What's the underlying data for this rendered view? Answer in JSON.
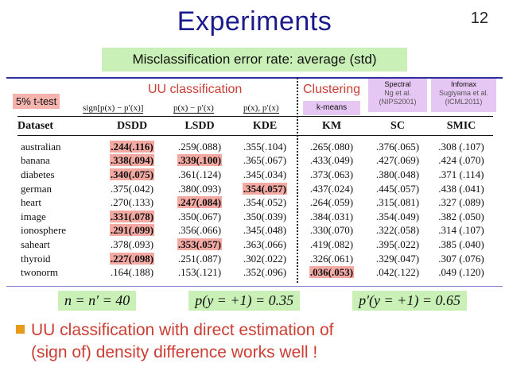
{
  "title": "Experiments",
  "page_number": "12",
  "subtitle": "Misclassification error rate: average (std)",
  "ttest_label": "5% t-test",
  "uu_header": "UU classification",
  "clustering_header": "Clustering",
  "kmeans_label": "k-means",
  "spectral": {
    "title": "Spectral",
    "line1": "Ng et al.",
    "line2": "(NIPS2001)"
  },
  "infomax": {
    "title": "Infomax",
    "line1": "Sugiyama et al.",
    "line2": "(ICML2011)"
  },
  "formulas": {
    "dsdd": "sign[p(x) − p′(x)]",
    "lsdd": "p(x) − p′(x)",
    "kde": "p(x), p′(x)"
  },
  "table": {
    "headers": [
      "Dataset",
      "DSDD",
      "LSDD",
      "KDE",
      "KM",
      "SC",
      "SMIC"
    ],
    "rows": [
      {
        "name": "australian",
        "values": [
          ".244(.116)",
          ".259(.088)",
          ".355(.104)",
          ".265(.080)",
          ".376(.065)",
          ".308 (.107)"
        ],
        "highlight": [
          true,
          false,
          false,
          false,
          false,
          false
        ]
      },
      {
        "name": "banana",
        "values": [
          ".338(.094)",
          ".339(.100)",
          ".365(.067)",
          ".433(.049)",
          ".427(.069)",
          ".424 (.070)"
        ],
        "highlight": [
          true,
          true,
          false,
          false,
          false,
          false
        ]
      },
      {
        "name": "diabetes",
        "values": [
          ".340(.075)",
          ".361(.124)",
          ".345(.034)",
          ".373(.063)",
          ".380(.048)",
          ".371 (.114)"
        ],
        "highlight": [
          true,
          false,
          false,
          false,
          false,
          false
        ]
      },
      {
        "name": "german",
        "values": [
          ".375(.042)",
          ".380(.093)",
          ".354(.057)",
          ".437(.024)",
          ".445(.057)",
          ".438 (.041)"
        ],
        "highlight": [
          false,
          false,
          true,
          false,
          false,
          false
        ]
      },
      {
        "name": "heart",
        "values": [
          ".270(.133)",
          ".247(.084)",
          ".354(.052)",
          ".264(.059)",
          ".315(.081)",
          ".327 (.089)"
        ],
        "highlight": [
          false,
          true,
          false,
          false,
          false,
          false
        ]
      },
      {
        "name": "image",
        "values": [
          ".331(.078)",
          ".350(.067)",
          ".350(.039)",
          ".384(.031)",
          ".354(.049)",
          ".382 (.050)"
        ],
        "highlight": [
          true,
          false,
          false,
          false,
          false,
          false
        ]
      },
      {
        "name": "ionosphere",
        "values": [
          ".291(.099)",
          ".356(.066)",
          ".345(.048)",
          ".330(.070)",
          ".322(.058)",
          ".314 (.107)"
        ],
        "highlight": [
          true,
          false,
          false,
          false,
          false,
          false
        ]
      },
      {
        "name": "saheart",
        "values": [
          ".378(.093)",
          ".353(.057)",
          ".363(.066)",
          ".419(.082)",
          ".395(.022)",
          ".385 (.040)"
        ],
        "highlight": [
          false,
          true,
          false,
          false,
          false,
          false
        ]
      },
      {
        "name": "thyroid",
        "values": [
          ".227(.098)",
          ".251(.087)",
          ".302(.022)",
          ".326(.061)",
          ".329(.047)",
          ".307 (.076)"
        ],
        "highlight": [
          true,
          false,
          false,
          false,
          false,
          false
        ]
      },
      {
        "name": "twonorm",
        "values": [
          ".164(.188)",
          ".153(.121)",
          ".352(.096)",
          ".036(.053)",
          ".042(.122)",
          ".049 (.120)"
        ],
        "highlight": [
          false,
          false,
          false,
          true,
          false,
          false
        ]
      }
    ]
  },
  "params": [
    "n = n′ = 40",
    "p(y = +1) = 0.35",
    "p′(y = +1) = 0.65"
  ],
  "conclusion": {
    "line1": "UU classification with direct estimation of",
    "line2": "(sign of) density difference works well !"
  },
  "colors": {
    "title": "#1a1a8c",
    "accent_red": "#cc3e34",
    "highlight": "#f4a9a3",
    "green_box": "#c9f0b6",
    "purple_box": "#e6c6f2",
    "bullet": "#e89a1a"
  }
}
